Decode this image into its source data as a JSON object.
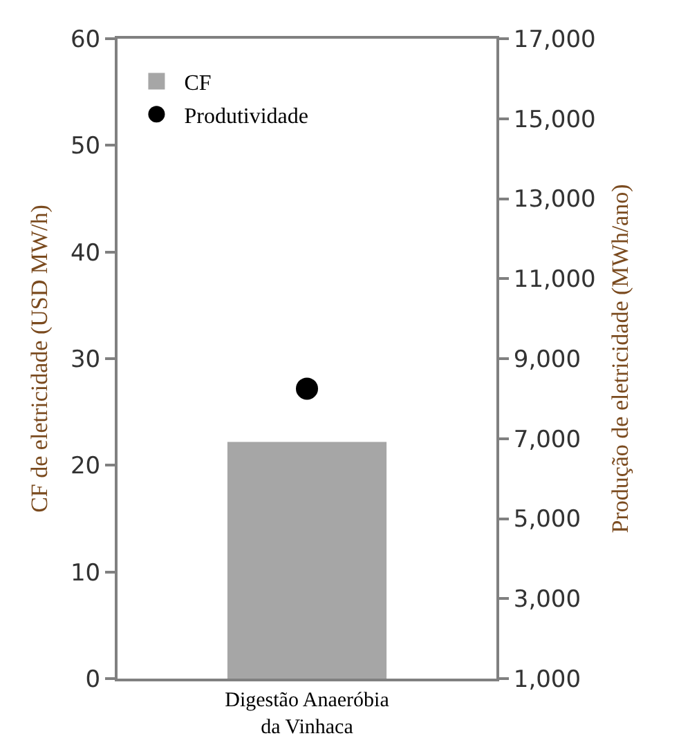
{
  "chart_data": {
    "type": "bar",
    "categories": [
      "Digestão Anaeróbia da Vinhaca"
    ],
    "ylabel": "CF de eletricidade (USD MW/h)",
    "y2label": "Produção de eletricidade (MWh/ano)",
    "series": [
      {
        "name": "CF",
        "color": "#a6a6a6",
        "values": [
          22.2
        ]
      },
      {
        "name": "Produtividade",
        "type": "scatter",
        "axis": "y2",
        "color": "#000000",
        "values": [
          8250
        ],
        "marker": "circle"
      }
    ],
    "ylim": [
      0,
      60
    ],
    "yticks": [
      0,
      10,
      20,
      30,
      40,
      50,
      60
    ],
    "y2lim": [
      1000,
      17000
    ],
    "y2ticks": [
      {
        "value": 1000,
        "label": "1,000"
      },
      {
        "value": 3000,
        "label": "3,000"
      },
      {
        "value": 5000,
        "label": "5,000"
      },
      {
        "value": 7000,
        "label": "7,000"
      },
      {
        "value": 9000,
        "label": "9,000"
      },
      {
        "value": 11000,
        "label": "11,000"
      },
      {
        "value": 13000,
        "label": "13,000"
      },
      {
        "value": 15000,
        "label": "15,000"
      },
      {
        "value": 17000,
        "label": "17,000"
      }
    ],
    "legend": "top left",
    "grid": false
  }
}
